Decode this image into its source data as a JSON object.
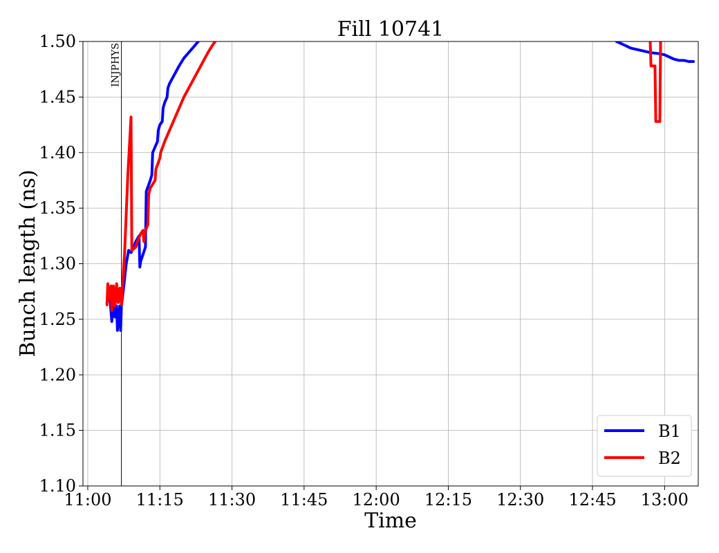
{
  "chart_data": {
    "type": "line",
    "title": "Fill 10741",
    "xlabel": "Time",
    "ylabel": "Bunch length (ns)",
    "xlim": [
      "10:59",
      "13:07"
    ],
    "ylim": [
      1.1,
      1.5
    ],
    "x_ticks": [
      "11:00",
      "11:15",
      "11:30",
      "11:45",
      "12:00",
      "12:15",
      "12:30",
      "12:45",
      "13:00"
    ],
    "y_ticks": [
      "1.10",
      "1.15",
      "1.20",
      "1.25",
      "1.30",
      "1.35",
      "1.40",
      "1.45",
      "1.50"
    ],
    "grid": true,
    "legend_position": "lower-right",
    "vertical_markers": [
      {
        "x": "11:07",
        "label": "INJPHYS"
      }
    ],
    "series": [
      {
        "name": "B1",
        "color": "#0000ff",
        "points": [
          [
            "11:04",
            1.265
          ],
          [
            "11:04:30",
            1.275
          ],
          [
            "11:05",
            1.248
          ],
          [
            "11:05:20",
            1.265
          ],
          [
            "11:05:40",
            1.252
          ],
          [
            "11:06",
            1.262
          ],
          [
            "11:06:10",
            1.24
          ],
          [
            "11:06:40",
            1.262
          ],
          [
            "11:06:50",
            1.24
          ],
          [
            "11:07",
            1.262
          ],
          [
            "11:07:30",
            1.28
          ],
          [
            "11:08",
            1.3
          ],
          [
            "11:08:30",
            1.312
          ],
          [
            "11:09",
            1.31
          ],
          [
            "11:10",
            1.32
          ],
          [
            "11:10:40",
            1.325
          ],
          [
            "11:10:50",
            1.297
          ],
          [
            "11:11",
            1.302
          ],
          [
            "11:12",
            1.315
          ],
          [
            "11:12:10",
            1.365
          ],
          [
            "11:13",
            1.375
          ],
          [
            "11:13:20",
            1.38
          ],
          [
            "11:13:30",
            1.4
          ],
          [
            "11:14",
            1.405
          ],
          [
            "11:14:30",
            1.41
          ],
          [
            "11:14:40",
            1.42
          ],
          [
            "11:15",
            1.425
          ],
          [
            "11:15:30",
            1.428
          ],
          [
            "11:15:40",
            1.44
          ],
          [
            "11:16",
            1.445
          ],
          [
            "11:16:30",
            1.45
          ],
          [
            "11:16:40",
            1.458
          ],
          [
            "11:17",
            1.462
          ],
          [
            "11:18",
            1.47
          ],
          [
            "11:19",
            1.478
          ],
          [
            "11:20",
            1.485
          ],
          [
            "11:21",
            1.49
          ],
          [
            "11:22",
            1.495
          ],
          [
            "11:23",
            1.5
          ],
          null,
          [
            "12:50",
            1.5
          ],
          [
            "12:51",
            1.498
          ],
          [
            "12:52",
            1.496
          ],
          [
            "12:53",
            1.494
          ],
          [
            "12:55",
            1.492
          ],
          [
            "12:57",
            1.49
          ],
          [
            "12:59",
            1.489
          ],
          [
            "13:00",
            1.488
          ],
          [
            "13:01",
            1.486
          ],
          [
            "13:02",
            1.484
          ],
          [
            "13:03",
            1.483
          ],
          [
            "13:04",
            1.483
          ],
          [
            "13:05",
            1.482
          ],
          [
            "13:06",
            1.482
          ]
        ]
      },
      {
        "name": "B2",
        "color": "#ff0000",
        "points": [
          [
            "11:04",
            1.263
          ],
          [
            "11:04:10",
            1.282
          ],
          [
            "11:04:30",
            1.268
          ],
          [
            "11:04:50",
            1.28
          ],
          [
            "11:05",
            1.258
          ],
          [
            "11:05:20",
            1.28
          ],
          [
            "11:05:40",
            1.262
          ],
          [
            "11:06",
            1.282
          ],
          [
            "11:06:20",
            1.265
          ],
          [
            "11:06:40",
            1.278
          ],
          [
            "11:07",
            1.263
          ],
          [
            "11:07:40",
            1.31
          ],
          [
            "11:08:20",
            1.38
          ],
          [
            "11:09",
            1.432
          ],
          [
            "11:09:10",
            1.312
          ],
          [
            "11:10",
            1.315
          ],
          [
            "11:10:20",
            1.32
          ],
          [
            "11:11",
            1.327
          ],
          [
            "11:11:30",
            1.33
          ],
          [
            "11:11:40",
            1.32
          ],
          [
            "11:12",
            1.33
          ],
          [
            "11:12:30",
            1.335
          ],
          [
            "11:12:40",
            1.362
          ],
          [
            "11:13",
            1.368
          ],
          [
            "11:14",
            1.375
          ],
          [
            "11:14:10",
            1.385
          ],
          [
            "11:15",
            1.395
          ],
          [
            "11:15:10",
            1.4
          ],
          [
            "11:16",
            1.41
          ],
          [
            "11:17",
            1.42
          ],
          [
            "11:18",
            1.43
          ],
          [
            "11:19",
            1.44
          ],
          [
            "11:20",
            1.45
          ],
          [
            "11:21",
            1.458
          ],
          [
            "11:22",
            1.466
          ],
          [
            "11:23",
            1.474
          ],
          [
            "11:24",
            1.482
          ],
          [
            "11:25",
            1.49
          ],
          [
            "11:26",
            1.497
          ],
          [
            "11:26:30",
            1.5
          ],
          null,
          [
            "12:57",
            1.5
          ],
          [
            "12:57:10",
            1.478
          ],
          [
            "12:58",
            1.478
          ],
          [
            "12:58:10",
            1.428
          ],
          [
            "12:59",
            1.428
          ],
          [
            "12:59:10",
            1.5
          ]
        ]
      }
    ]
  }
}
